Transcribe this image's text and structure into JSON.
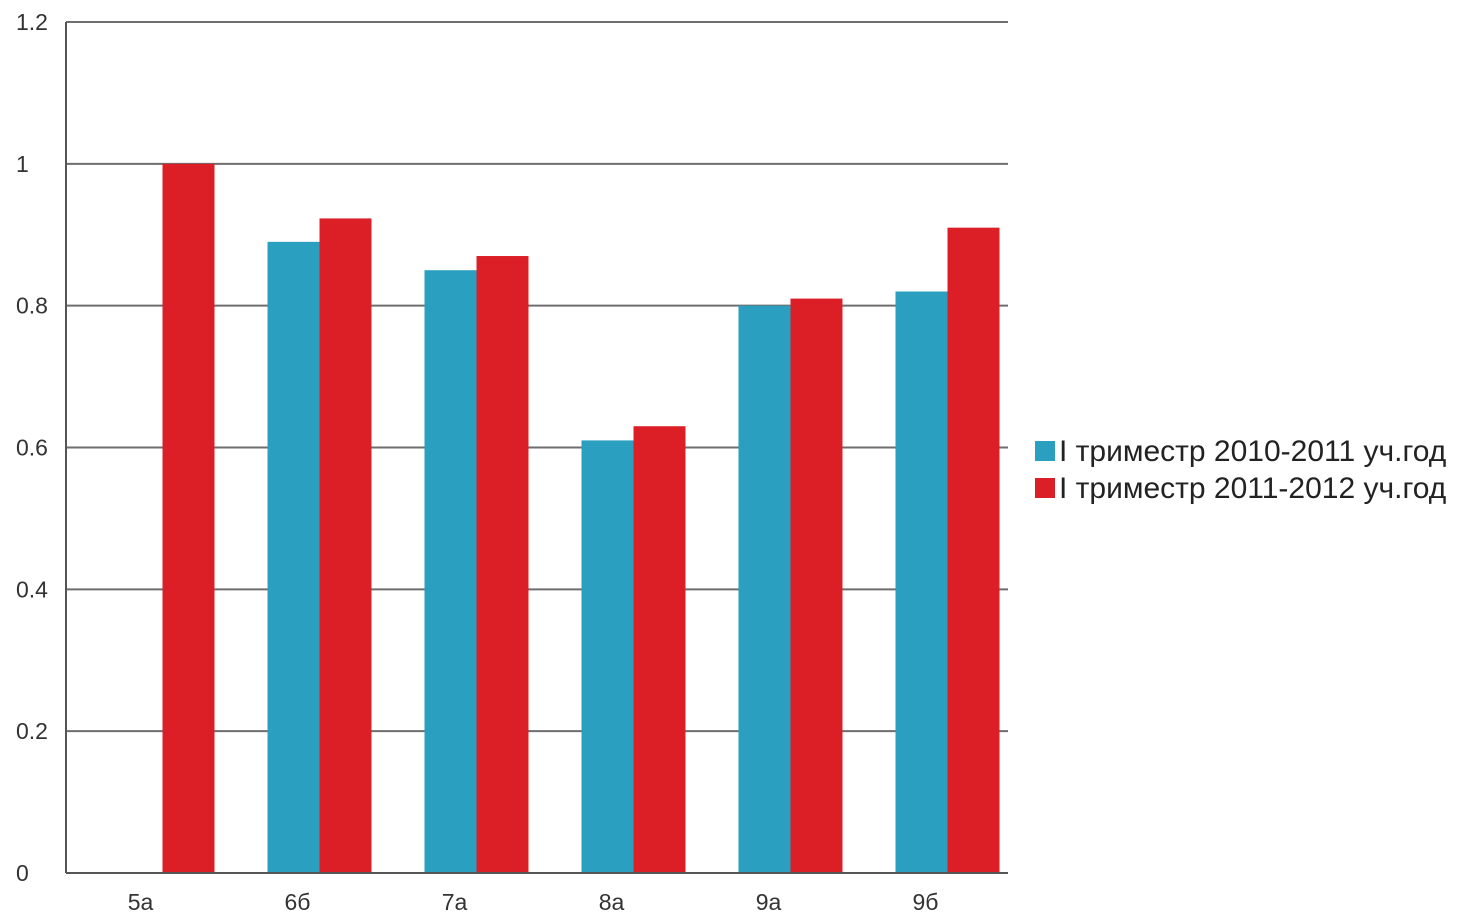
{
  "chart_data": {
    "type": "bar",
    "categories": [
      "5а",
      "6б",
      "7а",
      "8а",
      "9а",
      "9б"
    ],
    "series": [
      {
        "name": "I триместр 2010-2011 уч.год",
        "color": "#2b9fbf",
        "values": [
          0,
          0.89,
          0.85,
          0.61,
          0.8,
          0.82
        ]
      },
      {
        "name": "I триместр 2011-2012 уч.год",
        "color": "#dc1f26",
        "values": [
          1.0,
          0.923,
          0.87,
          0.63,
          0.81,
          0.91
        ]
      }
    ],
    "yticks": [
      "0",
      "0.2",
      "0.4",
      "0.6",
      "0.8",
      "1",
      "1.2"
    ],
    "ylim": [
      0,
      1.2
    ],
    "grid": true,
    "legend_position": "right"
  }
}
